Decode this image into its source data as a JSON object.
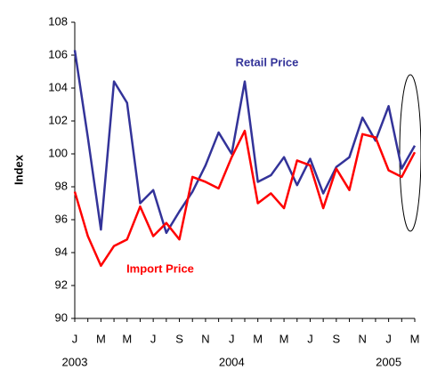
{
  "chart_data": {
    "type": "line",
    "y_label": "Index",
    "categories": [
      "J",
      null,
      "M",
      null,
      "M",
      null,
      "J",
      null,
      "S",
      null,
      "N",
      null,
      "J",
      null,
      "M",
      null,
      "M",
      null,
      "J",
      null,
      "S",
      null,
      "N",
      null,
      "J",
      null,
      "M"
    ],
    "year_labels": [
      "2003",
      "2004",
      "2005"
    ],
    "series": [
      {
        "name": "Retail Price",
        "color": "#333399",
        "values": [
          106.3,
          101,
          95.4,
          104.4,
          103.1,
          97,
          97.8,
          95.2,
          96.5,
          97.7,
          99.3,
          101.3,
          100,
          104.4,
          98.3,
          98.7,
          99.8,
          98.1,
          99.7,
          97.6,
          99.2,
          99.8,
          102.2,
          100.8,
          102.9,
          99.1,
          100.5
        ]
      },
      {
        "name": "Import Price",
        "color": "#ff0000",
        "values": [
          97.7,
          95,
          93.2,
          94.4,
          94.8,
          96.8,
          95,
          95.8,
          94.8,
          98.6,
          98.3,
          97.9,
          99.8,
          101.4,
          97,
          97.6,
          96.7,
          99.6,
          99.3,
          96.7,
          99.1,
          97.8,
          101.2,
          101,
          99,
          98.6,
          100.1
        ]
      }
    ],
    "ylim": [
      90,
      108
    ],
    "yticks": [
      90,
      92,
      94,
      96,
      98,
      100,
      102,
      104,
      106,
      108
    ],
    "grid": false
  }
}
